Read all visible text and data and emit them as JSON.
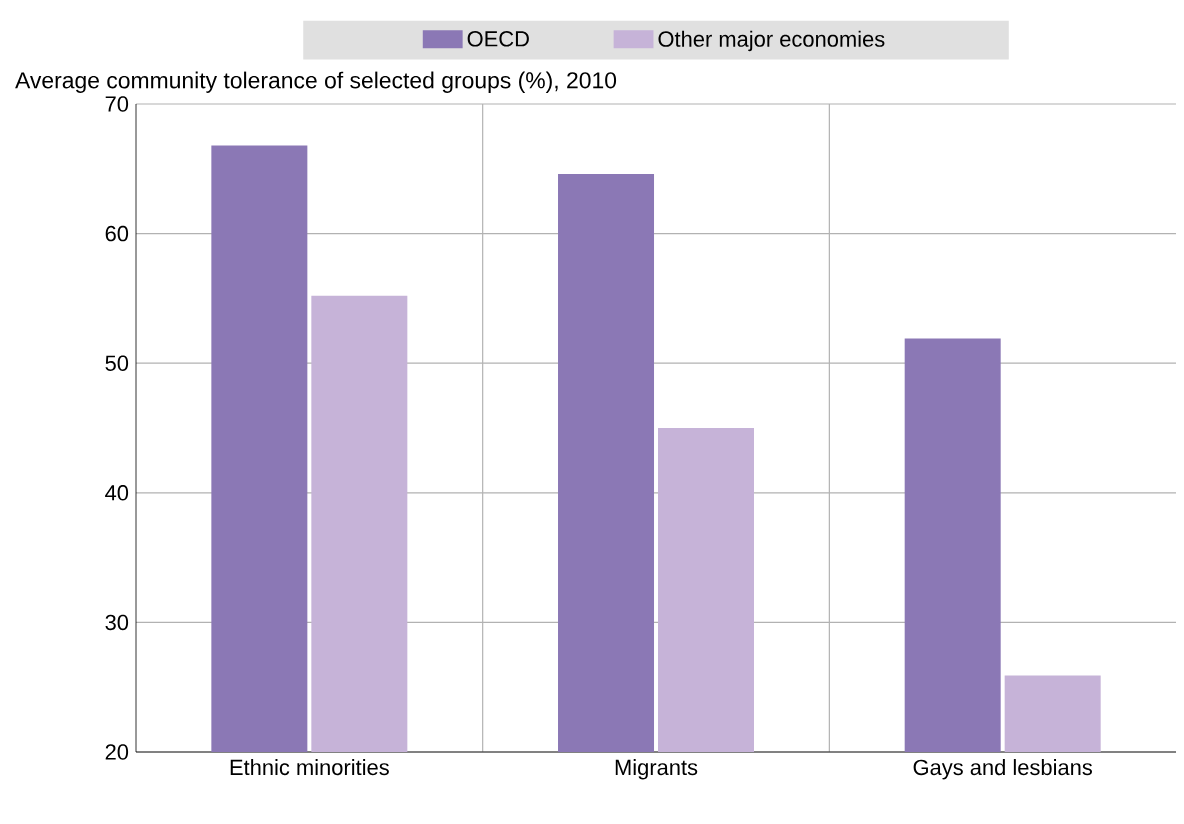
{
  "chart_data": {
    "type": "bar",
    "title": "Average community tolerance of selected groups (%), 2010",
    "categories": [
      "Ethnic minorities",
      "Migrants",
      "Gays and lesbians"
    ],
    "series": [
      {
        "name": "OECD",
        "color": "#8b78b5",
        "values": [
          66.8,
          64.6,
          51.9
        ]
      },
      {
        "name": "Other major economies",
        "color": "#c6b3d8",
        "values": [
          55.2,
          45,
          25.9
        ]
      }
    ],
    "ylim": [
      20,
      70
    ],
    "yticks": [
      20,
      30,
      40,
      50,
      60,
      70
    ],
    "grid": true,
    "legend": "top"
  }
}
